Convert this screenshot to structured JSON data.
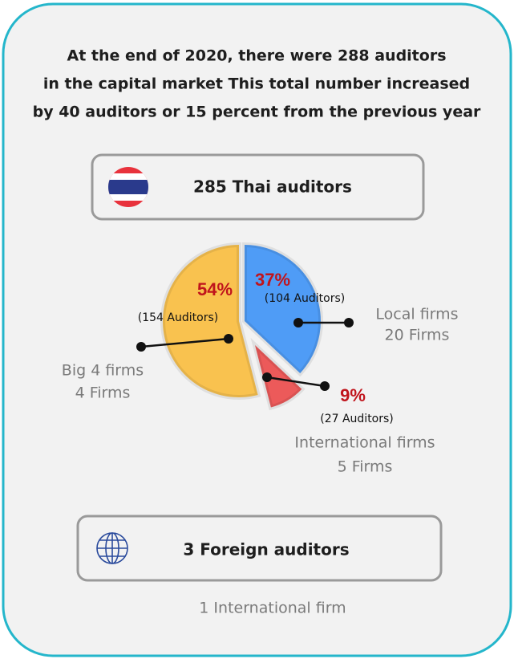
{
  "chart_data": {
    "type": "pie",
    "title": [
      "At the end of 2020, there were 288 auditors",
      "in the capital market This total number increased",
      "by 40 auditors or 15 percent from the previous year"
    ],
    "thai_box": "285 Thai auditors",
    "categories": [
      "Big 4 firms",
      "Local firms",
      "International firms"
    ],
    "values": [
      54,
      37,
      9
    ],
    "value_labels": [
      "54%",
      "37%",
      "9%"
    ],
    "auditor_labels": [
      "(154 Auditors)",
      "(104 Auditors)",
      "(27 Auditors)"
    ],
    "firm_labels": [
      "4 Firms",
      "20 Firms",
      "5 Firms"
    ],
    "colors": [
      "#f9c24f",
      "#4f9cf6",
      "#ec5a5a"
    ],
    "foreign_box": "3 Foreign auditors",
    "footer": "1 International firm"
  }
}
